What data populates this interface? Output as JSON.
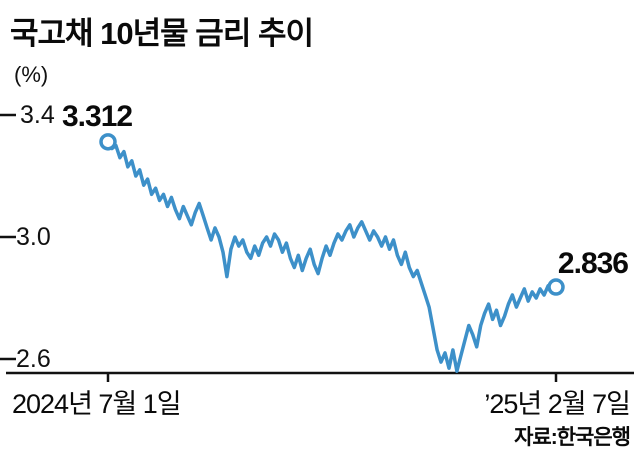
{
  "colors": {
    "line": "#3d90c9",
    "axis": "#111111",
    "marker_fill": "#ffffff"
  },
  "chart_data": {
    "type": "line",
    "title": "국고채 10년물 금리 추이",
    "ylabel": "(%)",
    "ytick_labels": [
      "3.4",
      "3.0",
      "2.6"
    ],
    "ytick_values": [
      3.4,
      3.0,
      2.6
    ],
    "ylim": [
      2.55,
      3.42
    ],
    "x_start_label": "2024년 7월 1일",
    "x_end_label": "’25년 2월 7일",
    "start_value_label": "3.312",
    "end_value_label": "2.836",
    "source": "자료:한국은행",
    "legend": "none",
    "grid": false,
    "values": [
      3.312,
      3.29,
      3.3,
      3.26,
      3.28,
      3.23,
      3.25,
      3.2,
      3.22,
      3.17,
      3.19,
      3.14,
      3.16,
      3.12,
      3.14,
      3.1,
      3.13,
      3.09,
      3.06,
      3.1,
      3.07,
      3.04,
      3.08,
      3.11,
      3.07,
      3.03,
      2.99,
      3.03,
      3.0,
      2.95,
      2.87,
      2.96,
      3.0,
      2.97,
      2.99,
      2.95,
      2.93,
      2.97,
      2.94,
      2.98,
      3.0,
      2.97,
      3.01,
      2.99,
      2.95,
      2.98,
      2.93,
      2.9,
      2.94,
      2.89,
      2.93,
      2.96,
      2.91,
      2.88,
      2.93,
      2.97,
      2.94,
      2.98,
      3.01,
      2.99,
      3.02,
      3.04,
      3.0,
      3.03,
      3.05,
      3.02,
      2.99,
      3.02,
      3.0,
      2.97,
      3.0,
      2.96,
      2.99,
      2.94,
      2.91,
      2.95,
      2.9,
      2.87,
      2.89,
      2.85,
      2.81,
      2.77,
      2.7,
      2.63,
      2.59,
      2.62,
      2.57,
      2.63,
      2.56,
      2.61,
      2.66,
      2.71,
      2.68,
      2.64,
      2.71,
      2.75,
      2.78,
      2.73,
      2.76,
      2.71,
      2.74,
      2.78,
      2.81,
      2.77,
      2.8,
      2.83,
      2.79,
      2.82,
      2.8,
      2.83,
      2.81,
      2.84,
      2.82,
      2.836
    ]
  }
}
